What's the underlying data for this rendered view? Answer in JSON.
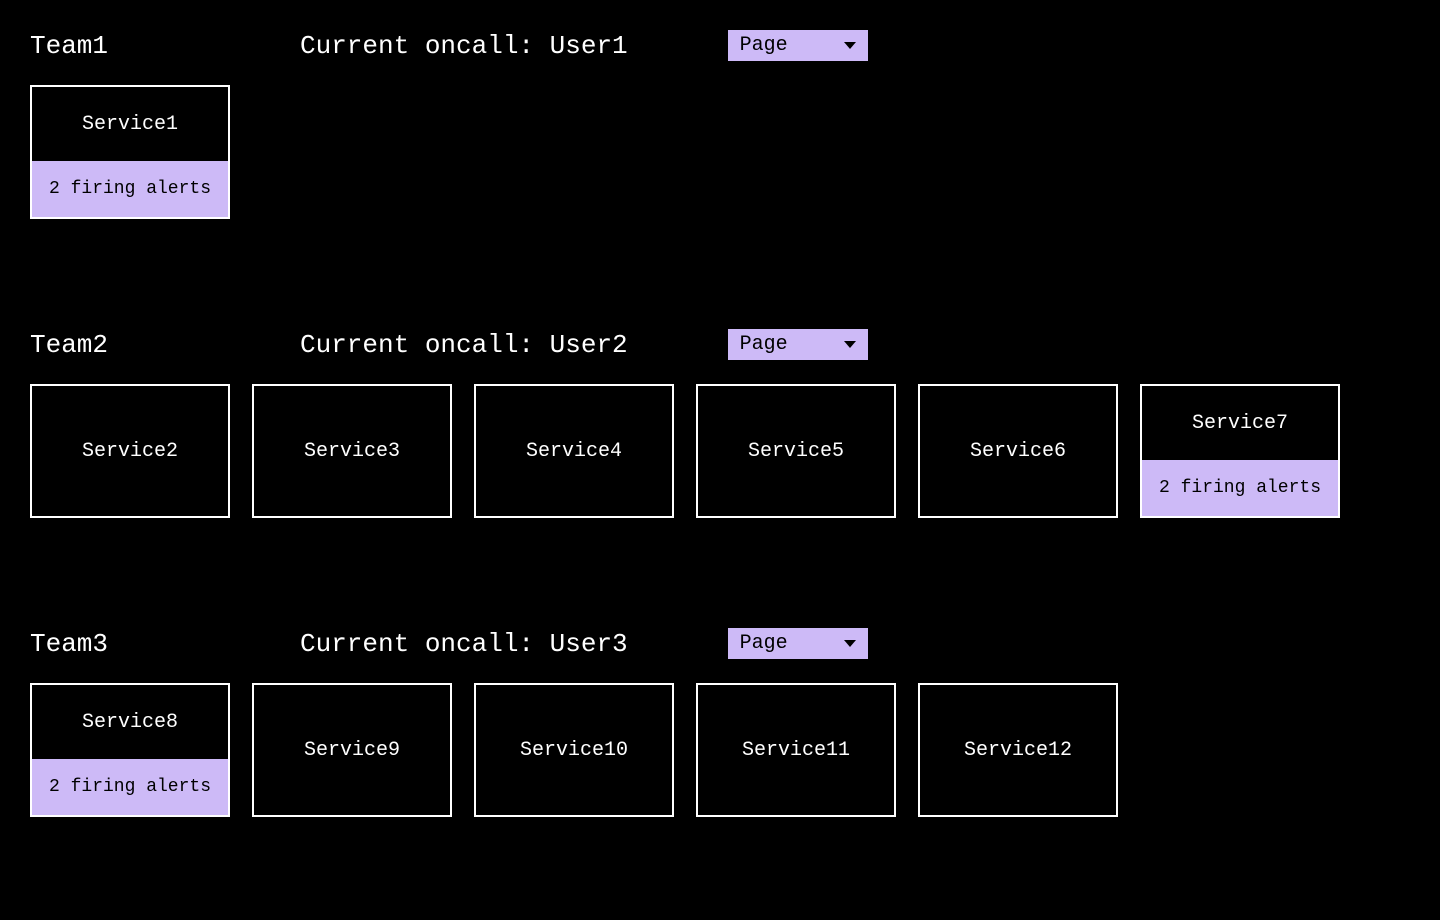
{
  "colors": {
    "background": "#000000",
    "text": "#ffffff",
    "accent": "#cdbaf7",
    "accent_text": "#000000",
    "border": "#ffffff"
  },
  "dropdown_label": "Page",
  "oncall_prefix": "Current oncall: ",
  "teams": [
    {
      "name": "Team1",
      "oncall_user": "User1",
      "services": [
        {
          "name": "Service1",
          "alert_text": "2 firing alerts"
        }
      ]
    },
    {
      "name": "Team2",
      "oncall_user": "User2",
      "services": [
        {
          "name": "Service2",
          "alert_text": null
        },
        {
          "name": "Service3",
          "alert_text": null
        },
        {
          "name": "Service4",
          "alert_text": null
        },
        {
          "name": "Service5",
          "alert_text": null
        },
        {
          "name": "Service6",
          "alert_text": null
        },
        {
          "name": "Service7",
          "alert_text": "2 firing alerts"
        }
      ]
    },
    {
      "name": "Team3",
      "oncall_user": "User3",
      "services": [
        {
          "name": "Service8",
          "alert_text": "2 firing alerts"
        },
        {
          "name": "Service9",
          "alert_text": null
        },
        {
          "name": "Service10",
          "alert_text": null
        },
        {
          "name": "Service11",
          "alert_text": null
        },
        {
          "name": "Service12",
          "alert_text": null
        }
      ]
    }
  ]
}
